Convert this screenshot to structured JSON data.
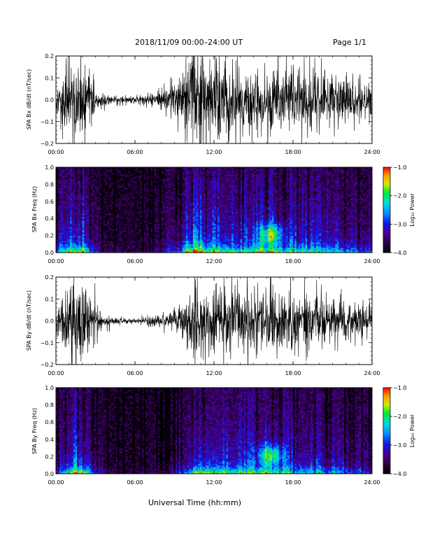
{
  "header": {
    "date_label": "2018/11/09   00:00–24:00 UT",
    "page_label": "Page 1/1"
  },
  "xlabel": "Universal Time (hh:mm)",
  "chart_data": [
    {
      "type": "line",
      "ylabel": "SPA Bx dB/dt (nT/sec)",
      "xlim": [
        0,
        24
      ],
      "ylim": [
        -0.2,
        0.2
      ],
      "xticks": [
        "00:00",
        "06:00",
        "12:00",
        "18:00",
        "24:00"
      ],
      "yticks": [
        "−0.2",
        "−0.1",
        "0.0",
        "0.1",
        "0.2"
      ],
      "yticks_values": [
        -0.2,
        -0.1,
        0.0,
        0.1,
        0.2
      ],
      "grid": false,
      "envelope": {
        "hours": [
          0,
          0.5,
          1,
          1.5,
          2,
          2.5,
          3,
          3.5,
          4,
          4.5,
          5,
          5.5,
          6,
          6.5,
          7,
          7.5,
          8,
          8.5,
          9,
          9.5,
          10,
          10.5,
          11,
          11.5,
          12,
          13,
          14,
          15,
          16,
          17,
          18,
          19,
          20,
          21,
          22,
          23,
          24
        ],
        "amplitude": [
          0.12,
          0.2,
          0.25,
          0.28,
          0.3,
          0.2,
          0.1,
          0.05,
          0.035,
          0.03,
          0.03,
          0.028,
          0.03,
          0.035,
          0.04,
          0.05,
          0.07,
          0.1,
          0.14,
          0.18,
          0.28,
          0.35,
          0.3,
          0.27,
          0.26,
          0.24,
          0.22,
          0.23,
          0.26,
          0.24,
          0.22,
          0.21,
          0.2,
          0.19,
          0.17,
          0.14,
          0.12
        ]
      }
    },
    {
      "type": "heatmap",
      "ylabel": "SPA Bx Freq (Hz)",
      "xlim": [
        0,
        24
      ],
      "ylim": [
        0.0,
        1.0
      ],
      "xticks": [
        "00:00",
        "06:00",
        "12:00",
        "18:00",
        "24:00"
      ],
      "yticks": [
        "0.0",
        "0.2",
        "0.4",
        "0.6",
        "0.8",
        "1.0"
      ],
      "yticks_values": [
        0.0,
        0.2,
        0.4,
        0.6,
        0.8,
        1.0
      ],
      "colorbar": {
        "label": "Log₁₀ Power",
        "range": [
          -4.0,
          -1.0
        ],
        "ticks": [
          "−1.0",
          "−2.0",
          "−3.0",
          "−4.0"
        ],
        "ticks_values": [
          -1.0,
          -2.0,
          -3.0,
          -4.0
        ]
      },
      "hotspot": {
        "hour": 16.3,
        "freq_hz": 0.22
      }
    },
    {
      "type": "line",
      "ylabel": "SPA By dB/dt (nT/sec)",
      "xlim": [
        0,
        24
      ],
      "ylim": [
        -0.2,
        0.2
      ],
      "xticks": [
        "00:00",
        "06:00",
        "12:00",
        "18:00",
        "24:00"
      ],
      "yticks": [
        "−0.2",
        "−0.1",
        "0.0",
        "0.1",
        "0.2"
      ],
      "yticks_values": [
        -0.2,
        -0.1,
        0.0,
        0.1,
        0.2
      ],
      "grid": false,
      "envelope": {
        "hours": [
          0,
          0.5,
          1,
          1.5,
          2,
          2.5,
          3,
          3.5,
          4,
          4.5,
          5,
          5.5,
          6,
          6.5,
          7,
          7.5,
          8,
          8.5,
          9,
          9.5,
          10,
          10.5,
          11,
          11.5,
          12,
          13,
          14,
          15,
          16,
          17,
          18,
          19,
          20,
          21,
          22,
          23,
          24
        ],
        "amplitude": [
          0.1,
          0.18,
          0.24,
          0.28,
          0.3,
          0.22,
          0.12,
          0.06,
          0.035,
          0.025,
          0.02,
          0.02,
          0.02,
          0.025,
          0.03,
          0.04,
          0.05,
          0.06,
          0.08,
          0.12,
          0.16,
          0.26,
          0.3,
          0.26,
          0.25,
          0.23,
          0.22,
          0.22,
          0.25,
          0.22,
          0.2,
          0.19,
          0.18,
          0.16,
          0.14,
          0.12,
          0.1
        ]
      }
    },
    {
      "type": "heatmap",
      "ylabel": "SPA By Freq (Hz)",
      "xlim": [
        0,
        24
      ],
      "ylim": [
        0.0,
        1.0
      ],
      "xticks": [
        "00:00",
        "06:00",
        "12:00",
        "18:00",
        "24:00"
      ],
      "yticks": [
        "0.0",
        "0.2",
        "0.4",
        "0.6",
        "0.8",
        "1.0"
      ],
      "yticks_values": [
        0.0,
        0.2,
        0.4,
        0.6,
        0.8,
        1.0
      ],
      "colorbar": {
        "label": "Log₁₀ Power",
        "range": [
          -4.0,
          -1.0
        ],
        "ticks": [
          "−1.0",
          "−2.0",
          "−3.0",
          "−4.0"
        ],
        "ticks_values": [
          -1.0,
          -2.0,
          -3.0,
          -4.0
        ]
      },
      "hotspot": {
        "hour": 16.3,
        "freq_hz": 0.22
      }
    }
  ]
}
